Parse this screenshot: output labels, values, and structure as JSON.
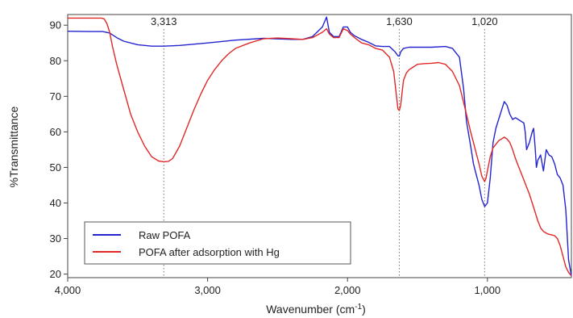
{
  "chart_data": {
    "type": "line",
    "title": "",
    "xlabel": "Wavenumber (cm",
    "xlabel_sup": "-1",
    "xlabel_close": ")",
    "ylabel": "%Transmittance",
    "xlim": [
      4000,
      400
    ],
    "ylim": [
      19,
      93
    ],
    "x_reversed": true,
    "x_ticks": [
      4000,
      3000,
      2000,
      1000
    ],
    "x_tick_labels": [
      "4,000",
      "3,000",
      "2,000",
      "1,000"
    ],
    "y_ticks": [
      20,
      30,
      40,
      50,
      60,
      70,
      80,
      90
    ],
    "y_tick_labels": [
      "20",
      "30",
      "40",
      "50",
      "60",
      "70",
      "80",
      "90"
    ],
    "grid": false,
    "legend_position": "bottom-left",
    "annotations": [
      {
        "x": 3313,
        "label": "3,313"
      },
      {
        "x": 1630,
        "label": "1,630"
      },
      {
        "x": 1020,
        "label": "1,020"
      }
    ],
    "series": [
      {
        "name": "Raw POFA",
        "color": "#2323d0",
        "x": [
          4000,
          3850,
          3750,
          3700,
          3650,
          3600,
          3500,
          3400,
          3313,
          3200,
          3000,
          2800,
          2600,
          2400,
          2320,
          2250,
          2180,
          2150,
          2130,
          2100,
          2060,
          2030,
          2000,
          1980,
          1950,
          1900,
          1850,
          1800,
          1750,
          1700,
          1660,
          1640,
          1630,
          1620,
          1600,
          1560,
          1500,
          1400,
          1300,
          1250,
          1200,
          1170,
          1150,
          1120,
          1100,
          1080,
          1060,
          1040,
          1020,
          1000,
          980,
          960,
          940,
          920,
          900,
          880,
          860,
          840,
          820,
          800,
          780,
          760,
          740,
          730,
          720,
          700,
          680,
          670,
          660,
          650,
          640,
          620,
          600,
          580,
          560,
          540,
          520,
          500,
          480,
          460,
          440,
          420,
          400
        ],
        "values": [
          88.3,
          88.2,
          88.2,
          87.8,
          86.5,
          85.5,
          84.5,
          84.1,
          84.1,
          84.3,
          85.0,
          85.8,
          86.3,
          86.0,
          86.0,
          86.8,
          89.5,
          92.3,
          88.0,
          86.8,
          86.8,
          89.5,
          89.5,
          88.0,
          87.0,
          86.0,
          85.2,
          84.2,
          84.0,
          84.0,
          82.5,
          81.4,
          81.3,
          82.5,
          83.5,
          83.8,
          83.8,
          83.8,
          84.0,
          83.5,
          81.0,
          72.0,
          63.0,
          56.0,
          51.0,
          48.0,
          45.0,
          41.0,
          39.0,
          40.0,
          47.0,
          57.0,
          61.0,
          63.5,
          66.0,
          68.5,
          67.5,
          65.0,
          63.5,
          64.0,
          63.5,
          63.0,
          62.5,
          60.0,
          55.0,
          57.0,
          60.0,
          61.0,
          56.0,
          50.0,
          52.0,
          53.5,
          49.0,
          55.0,
          53.5,
          53.0,
          51.0,
          48.0,
          47.0,
          45.0,
          38.0,
          24.0,
          19.5
        ]
      },
      {
        "name": "POFA after adsorption with Hg",
        "color": "#e02828",
        "x": [
          4000,
          3850,
          3760,
          3740,
          3720,
          3700,
          3680,
          3650,
          3600,
          3550,
          3500,
          3450,
          3400,
          3350,
          3313,
          3280,
          3250,
          3200,
          3150,
          3100,
          3050,
          3000,
          2950,
          2900,
          2850,
          2800,
          2700,
          2600,
          2500,
          2400,
          2320,
          2250,
          2180,
          2150,
          2130,
          2100,
          2060,
          2030,
          2000,
          1980,
          1950,
          1900,
          1850,
          1800,
          1750,
          1700,
          1670,
          1650,
          1640,
          1630,
          1620,
          1610,
          1600,
          1580,
          1560,
          1540,
          1520,
          1500,
          1450,
          1400,
          1350,
          1300,
          1250,
          1200,
          1150,
          1120,
          1100,
          1080,
          1060,
          1040,
          1020,
          1010,
          1000,
          980,
          960,
          940,
          920,
          900,
          880,
          860,
          840,
          820,
          800,
          780,
          760,
          740,
          720,
          700,
          680,
          660,
          640,
          620,
          600,
          580,
          560,
          540,
          520,
          500,
          480,
          460,
          440,
          420,
          400
        ],
        "values": [
          92.0,
          92.0,
          92.0,
          91.8,
          90.5,
          88.0,
          84.0,
          79.0,
          72.0,
          65.0,
          60.0,
          56.0,
          53.0,
          51.8,
          51.6,
          51.7,
          52.5,
          56.0,
          61.0,
          66.0,
          70.5,
          74.5,
          77.5,
          80.0,
          82.0,
          83.5,
          85.0,
          86.2,
          86.4,
          86.2,
          86.0,
          86.5,
          88.0,
          89.0,
          87.5,
          86.5,
          86.5,
          89.0,
          88.5,
          87.5,
          86.5,
          85.0,
          84.5,
          83.5,
          83.0,
          81.0,
          77.0,
          70.0,
          66.5,
          66.0,
          67.5,
          71.0,
          74.5,
          76.5,
          77.5,
          78.0,
          78.5,
          79.0,
          79.2,
          79.3,
          79.5,
          79.0,
          77.0,
          73.0,
          65.0,
          60.0,
          57.0,
          54.0,
          51.0,
          47.5,
          46.0,
          47.0,
          49.0,
          53.0,
          55.5,
          56.5,
          57.5,
          58.0,
          58.5,
          58.0,
          57.0,
          55.0,
          52.5,
          50.5,
          48.5,
          46.5,
          44.5,
          42.5,
          40.0,
          37.5,
          35.0,
          33.0,
          32.0,
          31.5,
          31.2,
          31.0,
          30.8,
          30.0,
          28.0,
          25.0,
          22.0,
          20.5,
          19.5
        ]
      }
    ]
  }
}
